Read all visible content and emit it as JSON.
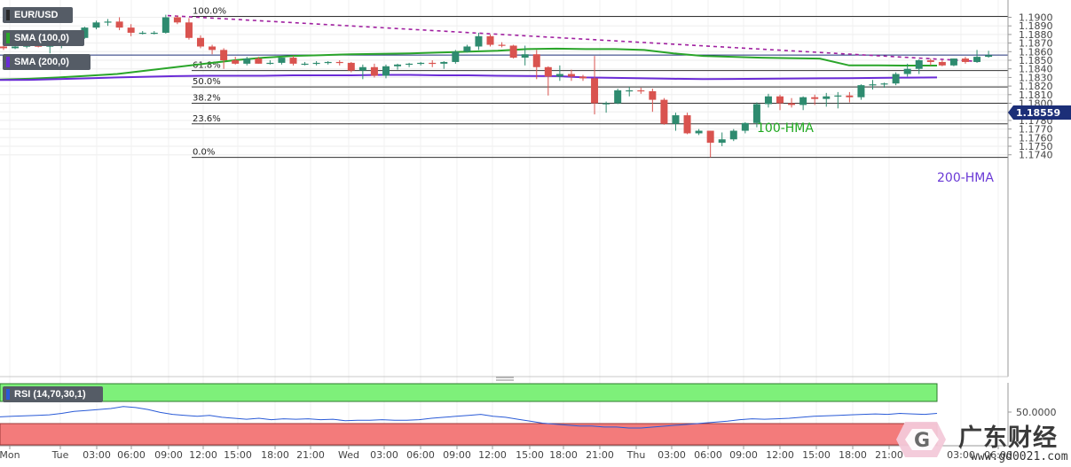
{
  "symbol": "EUR/USD",
  "indicators": {
    "sma100": {
      "label": "SMA (100,0)",
      "color": "#2aa52a"
    },
    "sma200": {
      "label": "SMA (200,0)",
      "color": "#6a2bd6"
    }
  },
  "rsi": {
    "label": "RSI (14,70,30,1)",
    "level": "50.0000",
    "line_color": "#2a5bd7",
    "upper_zone_color": "#7ef07a",
    "lower_zone_color": "#f37b7b"
  },
  "current_price_label": "1.18559",
  "hma_labels": {
    "hma100": "100-HMA",
    "hma200": "200-HMA"
  },
  "watermark": {
    "brand": "广东财经",
    "url": "www.gd0021.com"
  },
  "chart_data": {
    "type": "candlestick",
    "title": "EUR/USD",
    "ylim": [
      1.1735,
      1.1908
    ],
    "y_ticks": [
      "1.1900",
      "1.1890",
      "1.1880",
      "1.1870",
      "1.1860",
      "1.1850",
      "1.1840",
      "1.1830",
      "1.1820",
      "1.1810",
      "1.1800",
      "1.1790",
      "1.1780",
      "1.1770",
      "1.1760",
      "1.1750",
      "1.1740"
    ],
    "x_ticks": [
      "Mon",
      "Tue",
      "03:00",
      "06:00",
      "09:00",
      "12:00",
      "15:00",
      "18:00",
      "21:00",
      "Wed",
      "03:00",
      "06:00",
      "09:00",
      "12:00",
      "15:00",
      "18:00",
      "21:00",
      "Thu",
      "03:00",
      "06:00",
      "09:00",
      "12:00",
      "15:00",
      "18:00",
      "21:00",
      "03:00",
      "06:00"
    ],
    "grid": true,
    "fibonacci": [
      {
        "label": "100.0%",
        "price": 1.1901
      },
      {
        "label": "61.8%",
        "price": 1.1838
      },
      {
        "label": "50.0%",
        "price": 1.1819
      },
      {
        "label": "38.2%",
        "price": 1.18
      },
      {
        "label": "23.6%",
        "price": 1.1776
      },
      {
        "label": "0.0%",
        "price": 1.1737
      }
    ],
    "candles": [
      {
        "o": 1.1866,
        "h": 1.187,
        "l": 1.1862,
        "c": 1.1864
      },
      {
        "o": 1.1864,
        "h": 1.1868,
        "l": 1.1863,
        "c": 1.1866
      },
      {
        "o": 1.1866,
        "h": 1.1868,
        "l": 1.1864,
        "c": 1.1867
      },
      {
        "o": 1.1867,
        "h": 1.1869,
        "l": 1.1865,
        "c": 1.1866
      },
      {
        "o": 1.1866,
        "h": 1.1868,
        "l": 1.1858,
        "c": 1.1867
      },
      {
        "o": 1.1867,
        "h": 1.1875,
        "l": 1.1864,
        "c": 1.1872
      },
      {
        "o": 1.1872,
        "h": 1.1878,
        "l": 1.187,
        "c": 1.1876
      },
      {
        "o": 1.1876,
        "h": 1.1889,
        "l": 1.1875,
        "c": 1.1888
      },
      {
        "o": 1.1888,
        "h": 1.1896,
        "l": 1.1886,
        "c": 1.1894
      },
      {
        "o": 1.1894,
        "h": 1.1898,
        "l": 1.189,
        "c": 1.1895
      },
      {
        "o": 1.1895,
        "h": 1.19,
        "l": 1.1885,
        "c": 1.1888
      },
      {
        "o": 1.1888,
        "h": 1.1892,
        "l": 1.1878,
        "c": 1.1882
      },
      {
        "o": 1.1882,
        "h": 1.1884,
        "l": 1.188,
        "c": 1.1882
      },
      {
        "o": 1.1882,
        "h": 1.1884,
        "l": 1.188,
        "c": 1.1882
      },
      {
        "o": 1.1882,
        "h": 1.1903,
        "l": 1.1881,
        "c": 1.19
      },
      {
        "o": 1.19,
        "h": 1.1902,
        "l": 1.1892,
        "c": 1.1894
      },
      {
        "o": 1.1894,
        "h": 1.1899,
        "l": 1.1874,
        "c": 1.1876
      },
      {
        "o": 1.1876,
        "h": 1.1879,
        "l": 1.1864,
        "c": 1.1866
      },
      {
        "o": 1.1866,
        "h": 1.1868,
        "l": 1.1857,
        "c": 1.1862
      },
      {
        "o": 1.1862,
        "h": 1.1864,
        "l": 1.184,
        "c": 1.185
      },
      {
        "o": 1.185,
        "h": 1.1854,
        "l": 1.1845,
        "c": 1.1846
      },
      {
        "o": 1.1846,
        "h": 1.1854,
        "l": 1.1844,
        "c": 1.1852
      },
      {
        "o": 1.1852,
        "h": 1.1854,
        "l": 1.1846,
        "c": 1.1846
      },
      {
        "o": 1.1846,
        "h": 1.185,
        "l": 1.1845,
        "c": 1.1847
      },
      {
        "o": 1.1847,
        "h": 1.1853,
        "l": 1.1845,
        "c": 1.1853
      },
      {
        "o": 1.1853,
        "h": 1.1855,
        "l": 1.1844,
        "c": 1.1846
      },
      {
        "o": 1.1846,
        "h": 1.1848,
        "l": 1.1844,
        "c": 1.1846
      },
      {
        "o": 1.1846,
        "h": 1.1849,
        "l": 1.1844,
        "c": 1.1847
      },
      {
        "o": 1.1847,
        "h": 1.1849,
        "l": 1.1845,
        "c": 1.1848
      },
      {
        "o": 1.1848,
        "h": 1.185,
        "l": 1.1844,
        "c": 1.1847
      },
      {
        "o": 1.1847,
        "h": 1.1848,
        "l": 1.1836,
        "c": 1.1838
      },
      {
        "o": 1.1838,
        "h": 1.1845,
        "l": 1.1828,
        "c": 1.1842
      },
      {
        "o": 1.1842,
        "h": 1.1846,
        "l": 1.183,
        "c": 1.1832
      },
      {
        "o": 1.1832,
        "h": 1.1845,
        "l": 1.1829,
        "c": 1.1843
      },
      {
        "o": 1.1843,
        "h": 1.1846,
        "l": 1.1839,
        "c": 1.1845
      },
      {
        "o": 1.1845,
        "h": 1.1847,
        "l": 1.1842,
        "c": 1.1846
      },
      {
        "o": 1.1846,
        "h": 1.1848,
        "l": 1.1844,
        "c": 1.1847
      },
      {
        "o": 1.1847,
        "h": 1.185,
        "l": 1.1842,
        "c": 1.1846
      },
      {
        "o": 1.1846,
        "h": 1.1849,
        "l": 1.184,
        "c": 1.1848
      },
      {
        "o": 1.1848,
        "h": 1.1862,
        "l": 1.1846,
        "c": 1.186
      },
      {
        "o": 1.186,
        "h": 1.1868,
        "l": 1.1859,
        "c": 1.1866
      },
      {
        "o": 1.1866,
        "h": 1.1882,
        "l": 1.1862,
        "c": 1.1878
      },
      {
        "o": 1.1878,
        "h": 1.188,
        "l": 1.1866,
        "c": 1.1868
      },
      {
        "o": 1.1868,
        "h": 1.1871,
        "l": 1.1865,
        "c": 1.1867
      },
      {
        "o": 1.1867,
        "h": 1.1868,
        "l": 1.1852,
        "c": 1.1853
      },
      {
        "o": 1.1853,
        "h": 1.1867,
        "l": 1.1844,
        "c": 1.1857
      },
      {
        "o": 1.1857,
        "h": 1.1862,
        "l": 1.1828,
        "c": 1.1842
      },
      {
        "o": 1.1842,
        "h": 1.1843,
        "l": 1.1809,
        "c": 1.1831
      },
      {
        "o": 1.1831,
        "h": 1.1844,
        "l": 1.1826,
        "c": 1.1834
      },
      {
        "o": 1.1834,
        "h": 1.1839,
        "l": 1.1826,
        "c": 1.1831
      },
      {
        "o": 1.1831,
        "h": 1.1833,
        "l": 1.1826,
        "c": 1.1829
      },
      {
        "o": 1.1829,
        "h": 1.1855,
        "l": 1.1787,
        "c": 1.18
      },
      {
        "o": 1.18,
        "h": 1.1802,
        "l": 1.1789,
        "c": 1.18
      },
      {
        "o": 1.18,
        "h": 1.1817,
        "l": 1.1799,
        "c": 1.1815
      },
      {
        "o": 1.1815,
        "h": 1.1819,
        "l": 1.1808,
        "c": 1.1815
      },
      {
        "o": 1.1815,
        "h": 1.1818,
        "l": 1.1811,
        "c": 1.1814
      },
      {
        "o": 1.1814,
        "h": 1.1817,
        "l": 1.179,
        "c": 1.1804
      },
      {
        "o": 1.1804,
        "h": 1.1806,
        "l": 1.1775,
        "c": 1.1776
      },
      {
        "o": 1.1776,
        "h": 1.1789,
        "l": 1.1768,
        "c": 1.1786
      },
      {
        "o": 1.1786,
        "h": 1.1789,
        "l": 1.1764,
        "c": 1.1765
      },
      {
        "o": 1.1765,
        "h": 1.177,
        "l": 1.1763,
        "c": 1.1768
      },
      {
        "o": 1.1768,
        "h": 1.1768,
        "l": 1.1737,
        "c": 1.1754
      },
      {
        "o": 1.1754,
        "h": 1.1766,
        "l": 1.175,
        "c": 1.1758
      },
      {
        "o": 1.1758,
        "h": 1.177,
        "l": 1.1756,
        "c": 1.1768
      },
      {
        "o": 1.1768,
        "h": 1.1778,
        "l": 1.1765,
        "c": 1.1777
      },
      {
        "o": 1.1777,
        "h": 1.1801,
        "l": 1.1772,
        "c": 1.1799
      },
      {
        "o": 1.1799,
        "h": 1.1811,
        "l": 1.1795,
        "c": 1.1808
      },
      {
        "o": 1.1808,
        "h": 1.181,
        "l": 1.1792,
        "c": 1.18
      },
      {
        "o": 1.18,
        "h": 1.1806,
        "l": 1.1795,
        "c": 1.1798
      },
      {
        "o": 1.1798,
        "h": 1.1808,
        "l": 1.1792,
        "c": 1.1807
      },
      {
        "o": 1.1807,
        "h": 1.181,
        "l": 1.1798,
        "c": 1.1805
      },
      {
        "o": 1.1805,
        "h": 1.1812,
        "l": 1.1796,
        "c": 1.1808
      },
      {
        "o": 1.1808,
        "h": 1.1813,
        "l": 1.1794,
        "c": 1.1809
      },
      {
        "o": 1.1809,
        "h": 1.1813,
        "l": 1.1801,
        "c": 1.1807
      },
      {
        "o": 1.1807,
        "h": 1.1822,
        "l": 1.1804,
        "c": 1.1821
      },
      {
        "o": 1.1821,
        "h": 1.1827,
        "l": 1.1816,
        "c": 1.1822
      },
      {
        "o": 1.1822,
        "h": 1.1824,
        "l": 1.1818,
        "c": 1.1823
      },
      {
        "o": 1.1823,
        "h": 1.1836,
        "l": 1.1821,
        "c": 1.1834
      },
      {
        "o": 1.1834,
        "h": 1.1846,
        "l": 1.1831,
        "c": 1.184
      },
      {
        "o": 1.184,
        "h": 1.1851,
        "l": 1.1834,
        "c": 1.185
      },
      {
        "o": 1.185,
        "h": 1.1852,
        "l": 1.1844,
        "c": 1.1848
      },
      {
        "o": 1.1848,
        "h": 1.185,
        "l": 1.1843,
        "c": 1.1844
      },
      {
        "o": 1.1844,
        "h": 1.1852,
        "l": 1.1843,
        "c": 1.1852
      },
      {
        "o": 1.1852,
        "h": 1.1854,
        "l": 1.1846,
        "c": 1.1848
      },
      {
        "o": 1.1848,
        "h": 1.1862,
        "l": 1.1847,
        "c": 1.1854
      },
      {
        "o": 1.1854,
        "h": 1.1861,
        "l": 1.1853,
        "c": 1.1856
      }
    ],
    "sma100": [
      1.18275,
      1.18285,
      1.183,
      1.1832,
      1.1834,
      1.1838,
      1.1842,
      1.1846,
      1.185,
      1.1853,
      1.1855,
      1.1856,
      1.1857,
      1.18575,
      1.1858,
      1.1859,
      1.186,
      1.1861,
      1.1863,
      1.18635,
      1.1863,
      1.1863,
      1.1862,
      1.1858,
      1.1855,
      1.1854,
      1.1853,
      1.18525,
      1.1852,
      1.1844,
      1.1844,
      1.18438,
      1.18438
    ],
    "sma200": [
      1.1827,
      1.18272,
      1.1828,
      1.1829,
      1.183,
      1.18308,
      1.18315,
      1.1832,
      1.1832,
      1.1832,
      1.18325,
      1.18325,
      1.18325,
      1.1833,
      1.1833,
      1.18325,
      1.18325,
      1.1832,
      1.18318,
      1.18315,
      1.183,
      1.18295,
      1.1829,
      1.18285,
      1.1828,
      1.18282,
      1.18285,
      1.18288,
      1.1829,
      1.18292,
      1.18295,
      1.18298,
      1.183
    ],
    "trendline": {
      "from": 1.1902,
      "to": 1.18485,
      "style": "dashed",
      "color": "#a020a0"
    },
    "rsi_values": [
      61,
      62,
      63,
      64,
      65,
      68,
      72,
      74,
      76,
      78,
      82,
      80,
      76,
      70,
      66,
      64,
      62,
      64,
      60,
      58,
      56,
      58,
      55,
      57,
      56,
      57,
      55,
      56,
      53,
      54,
      54,
      55,
      54,
      54,
      55,
      58,
      60,
      62,
      64,
      66,
      62,
      60,
      56,
      52,
      48,
      46,
      44,
      42,
      42,
      40,
      40,
      38,
      38,
      40,
      42,
      44,
      46,
      48,
      50,
      52,
      55,
      57,
      56,
      57,
      58,
      60,
      62,
      63,
      64,
      65,
      66,
      67,
      66,
      68,
      67,
      66,
      68
    ]
  }
}
